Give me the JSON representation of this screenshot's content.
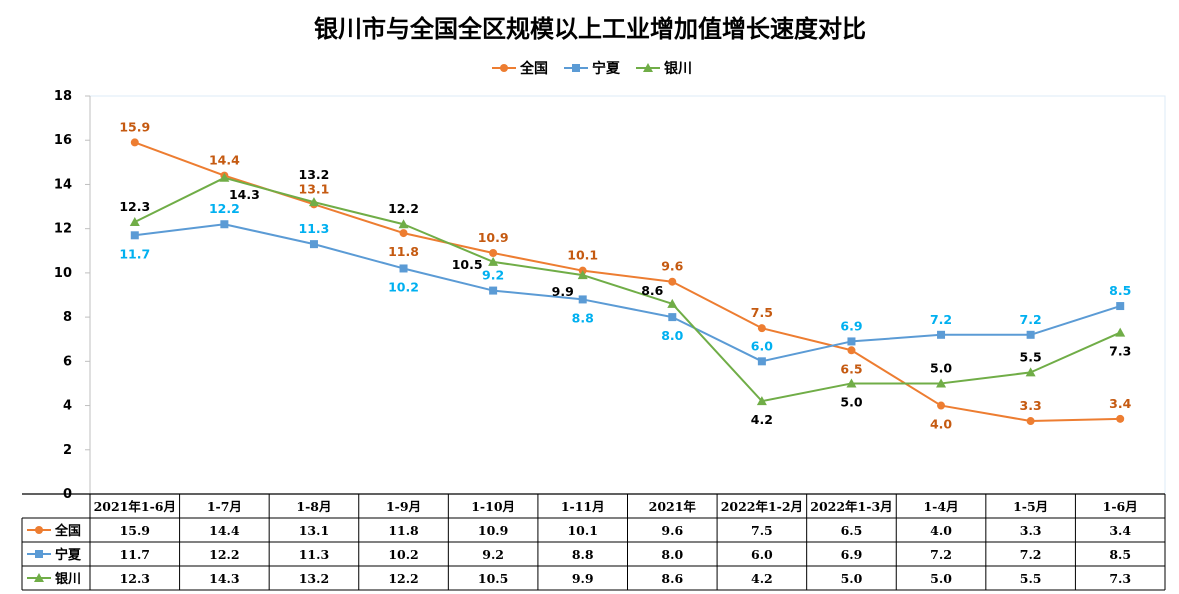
{
  "chart_data": {
    "type": "line",
    "title": "银川市与全国全区规模以上工业增加值增长速度对比",
    "categories": [
      "2021年1-6月",
      "1-7月",
      "1-8月",
      "1-9月",
      "1-10月",
      "1-11月",
      "2021年",
      "2022年1-2月",
      "2022年1-3月",
      "1-4月",
      "1-5月",
      "1-6月"
    ],
    "series": [
      {
        "name": "全国",
        "color": "#ED7D31",
        "label_color": "#C55A11",
        "marker": "circle",
        "values": [
          15.9,
          14.4,
          13.1,
          11.8,
          10.9,
          10.1,
          9.6,
          7.5,
          6.5,
          4.0,
          3.3,
          3.4
        ]
      },
      {
        "name": "宁夏",
        "color": "#5B9BD5",
        "label_color": "#00B0F0",
        "marker": "square",
        "values": [
          11.7,
          12.2,
          11.3,
          10.2,
          9.2,
          8.8,
          8.0,
          6.0,
          6.9,
          7.2,
          7.2,
          8.5
        ]
      },
      {
        "name": "银川",
        "color": "#70AD47",
        "label_color": "#000000",
        "marker": "triangle",
        "values": [
          12.3,
          14.3,
          13.2,
          12.2,
          10.5,
          9.9,
          8.6,
          4.2,
          5.0,
          5.0,
          5.5,
          7.3
        ]
      }
    ],
    "ylim": [
      0,
      18
    ],
    "yticks": [
      0,
      2,
      4,
      6,
      8,
      10,
      12,
      14,
      16,
      18
    ],
    "grid": false,
    "legend_position": "top",
    "data_table": true
  }
}
